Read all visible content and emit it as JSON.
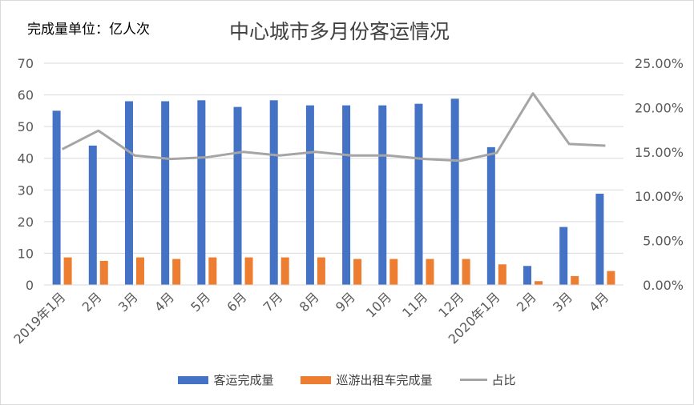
{
  "header": {
    "unit_label": "完成量单位：亿人次",
    "title": "中心城市多月份客运情况"
  },
  "colors": {
    "passenger": "#4472c4",
    "taxi": "#ed7d31",
    "ratio": "#a5a5a5",
    "grid": "#d9d9d9",
    "tick_text": "#595959"
  },
  "chart_data": {
    "type": "bar",
    "title": "中心城市多月份客运情况",
    "categories": [
      "2019年1月",
      "2月",
      "3月",
      "4月",
      "5月",
      "6月",
      "7月",
      "8月",
      "9月",
      "10月",
      "11月",
      "12月",
      "2020年1月",
      "2月",
      "3月",
      "4月"
    ],
    "series": [
      {
        "name": "客运完成量",
        "kind": "bar",
        "axis": "left",
        "values": [
          55,
          44,
          58,
          58,
          58.3,
          56.2,
          58.3,
          56.7,
          56.7,
          56.7,
          57.2,
          58.8,
          43.5,
          6,
          18.3,
          28.8
        ]
      },
      {
        "name": "巡游出租车完成量",
        "kind": "bar",
        "axis": "left",
        "values": [
          8.7,
          7.6,
          8.7,
          8.2,
          8.7,
          8.7,
          8.7,
          8.7,
          8.2,
          8.2,
          8.2,
          8.2,
          6.5,
          1.2,
          2.8,
          4.4
        ]
      },
      {
        "name": "占比",
        "kind": "line",
        "axis": "right",
        "values": [
          15.3,
          17.4,
          14.6,
          14.2,
          14.4,
          15.0,
          14.6,
          15.0,
          14.6,
          14.6,
          14.2,
          14.0,
          14.9,
          21.6,
          15.9,
          15.7
        ]
      }
    ],
    "y_left": {
      "min": 0,
      "max": 70,
      "ticks": [
        "0",
        "10",
        "20",
        "30",
        "40",
        "50",
        "60",
        "70"
      ]
    },
    "y_right": {
      "min": 0,
      "max": 25,
      "ticks": [
        "0.00%",
        "5.00%",
        "10.00%",
        "15.00%",
        "20.00%",
        "25.00%"
      ]
    },
    "grid": true,
    "legend": "bottom"
  }
}
